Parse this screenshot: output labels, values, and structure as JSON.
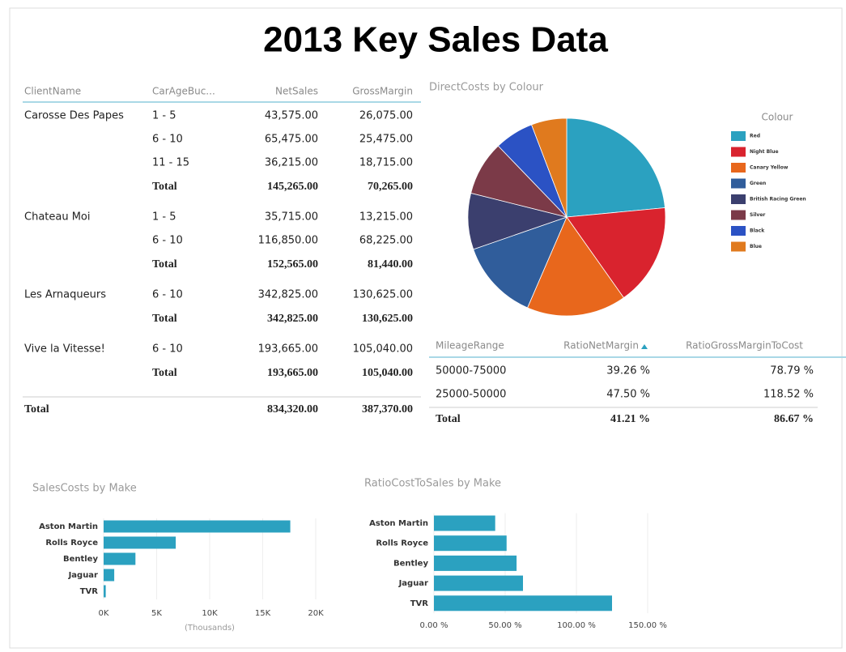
{
  "title": "2013 Key Sales Data",
  "sales_table": {
    "columns": [
      "ClientName",
      "CarAgeBuc...",
      "NetSales",
      "GrossMargin"
    ],
    "groups": [
      {
        "client": "Carosse Des Papes",
        "rows": [
          [
            "1 - 5",
            "43,575.00",
            "26,075.00"
          ],
          [
            "6 - 10",
            "65,475.00",
            "25,475.00"
          ],
          [
            "11 - 15",
            "36,215.00",
            "18,715.00"
          ]
        ],
        "total": [
          "Total",
          "145,265.00",
          "70,265.00"
        ]
      },
      {
        "client": "Chateau Moi",
        "rows": [
          [
            "1 - 5",
            "35,715.00",
            "13,215.00"
          ],
          [
            "6 - 10",
            "116,850.00",
            "68,225.00"
          ]
        ],
        "total": [
          "Total",
          "152,565.00",
          "81,440.00"
        ]
      },
      {
        "client": "Les Arnaqueurs",
        "rows": [
          [
            "6 - 10",
            "342,825.00",
            "130,625.00"
          ]
        ],
        "total": [
          "Total",
          "342,825.00",
          "130,625.00"
        ]
      },
      {
        "client": "Vive la Vitesse!",
        "rows": [
          [
            "6 - 10",
            "193,665.00",
            "105,040.00"
          ]
        ],
        "total": [
          "Total",
          "193,665.00",
          "105,040.00"
        ]
      }
    ],
    "total": [
      "Total",
      "834,320.00",
      "387,370.00"
    ]
  },
  "mileage_table": {
    "columns": [
      "MileageRange",
      "RatioNetMargin",
      "RatioGrossMarginToCost"
    ],
    "rows": [
      [
        "50000-75000",
        "39.26 %",
        "78.79 %"
      ],
      [
        "25000-50000",
        "47.50 %",
        "118.52 %"
      ]
    ],
    "total": [
      "Total",
      "41.21 %",
      "86.67 %"
    ]
  },
  "chart_data": [
    {
      "type": "pie",
      "title": "DirectCosts by Colour",
      "legend_title": "Colour",
      "categories": [
        "Red",
        "Night Blue",
        "Canary Yellow",
        "Green",
        "British Racing Green",
        "Silver",
        "Black",
        "Blue"
      ],
      "values": [
        23.5,
        16.7,
        16.3,
        13.2,
        9.2,
        8.9,
        6.4,
        5.8
      ],
      "colors": [
        "#2ba1c0",
        "#d9232e",
        "#e8671c",
        "#305d9b",
        "#3b3f6e",
        "#7b3a48",
        "#2b52c4",
        "#e07a1e"
      ]
    },
    {
      "type": "bar",
      "orientation": "horizontal",
      "title": "SalesCosts by Make",
      "categories": [
        "Aston Martin",
        "Rolls Royce",
        "Bentley",
        "Jaguar",
        "TVR"
      ],
      "values": [
        17600,
        6800,
        3000,
        1000,
        200
      ],
      "color": "#2ba1c0",
      "xlim": [
        0,
        20000
      ],
      "xticks": [
        {
          "value": 0,
          "label": "0K"
        },
        {
          "value": 5000,
          "label": "5K"
        },
        {
          "value": 10000,
          "label": "10K"
        },
        {
          "value": 15000,
          "label": "15K"
        },
        {
          "value": 20000,
          "label": "20K"
        }
      ],
      "xlabel": "(Thousands)",
      "grid": true
    },
    {
      "type": "bar",
      "orientation": "horizontal",
      "title": "RatioCostToSales by Make",
      "categories": [
        "Aston Martin",
        "Rolls Royce",
        "Bentley",
        "Jaguar",
        "TVR"
      ],
      "values": [
        43,
        51,
        58,
        62.5,
        125
      ],
      "color": "#2ba1c0",
      "xlim": [
        0,
        150
      ],
      "xticks": [
        {
          "value": 0,
          "label": "0.00 %"
        },
        {
          "value": 50,
          "label": "50.00 %"
        },
        {
          "value": 100,
          "label": "100.00 %"
        },
        {
          "value": 150,
          "label": "150.00 %"
        }
      ],
      "grid": true
    }
  ]
}
